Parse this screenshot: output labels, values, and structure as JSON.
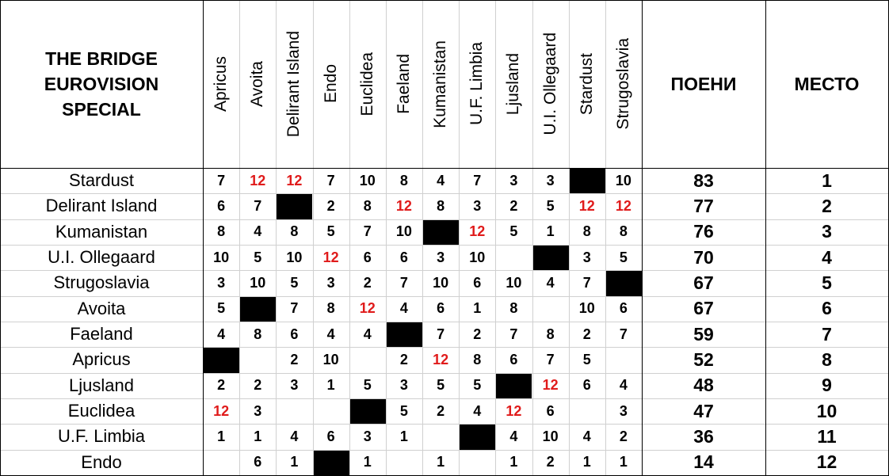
{
  "header": {
    "title": "THE BRIDGE EUROVISION SPECIAL",
    "points": "ПОЕНИ",
    "place": "МЕСТО",
    "columns": [
      "Apricus",
      "Avoita",
      "Delirant Island",
      "Endo",
      "Euclidea",
      "Faeland",
      "Kumanistan",
      "U.F. Limbia",
      "Ljusland",
      "U.I. Ollegaard",
      "Stardust",
      "Strugoslavia"
    ]
  },
  "table": {
    "rows": [
      {
        "country": "Stardust",
        "scores": [
          7,
          12,
          12,
          7,
          10,
          8,
          4,
          7,
          3,
          3,
          null,
          10
        ],
        "points": 83,
        "place": 1
      },
      {
        "country": "Delirant Island",
        "scores": [
          6,
          7,
          null,
          2,
          8,
          12,
          8,
          3,
          2,
          5,
          12,
          12
        ],
        "points": 77,
        "place": 2
      },
      {
        "country": "Kumanistan",
        "scores": [
          8,
          4,
          8,
          5,
          7,
          10,
          null,
          12,
          5,
          1,
          8,
          8
        ],
        "points": 76,
        "place": 3
      },
      {
        "country": "U.I. Ollegaard",
        "scores": [
          10,
          5,
          10,
          12,
          6,
          6,
          3,
          10,
          null,
          null,
          3,
          5
        ],
        "points": 70,
        "place": 4
      },
      {
        "country": "Strugoslavia",
        "scores": [
          3,
          10,
          5,
          3,
          2,
          7,
          10,
          6,
          10,
          4,
          7,
          null
        ],
        "points": 67,
        "place": 5
      },
      {
        "country": "Avoita",
        "scores": [
          5,
          null,
          7,
          8,
          12,
          4,
          6,
          1,
          8,
          null,
          10,
          6
        ],
        "points": 67,
        "place": 6
      },
      {
        "country": "Faeland",
        "scores": [
          4,
          8,
          6,
          4,
          4,
          null,
          7,
          2,
          7,
          8,
          2,
          7
        ],
        "points": 59,
        "place": 7
      },
      {
        "country": "Apricus",
        "scores": [
          null,
          null,
          2,
          10,
          null,
          2,
          12,
          8,
          6,
          7,
          5,
          null
        ],
        "points": 52,
        "place": 8
      },
      {
        "country": "Ljusland",
        "scores": [
          2,
          2,
          3,
          1,
          5,
          3,
          5,
          5,
          null,
          12,
          6,
          4
        ],
        "points": 48,
        "place": 9
      },
      {
        "country": "Euclidea",
        "scores": [
          12,
          3,
          null,
          null,
          null,
          5,
          2,
          4,
          12,
          6,
          null,
          3
        ],
        "points": 47,
        "place": 10
      },
      {
        "country": "U.F. Limbia",
        "scores": [
          1,
          1,
          4,
          6,
          3,
          1,
          null,
          null,
          4,
          10,
          4,
          2
        ],
        "points": 36,
        "place": 11
      },
      {
        "country": "Endo",
        "scores": [
          null,
          6,
          1,
          null,
          1,
          null,
          1,
          null,
          1,
          2,
          1,
          1
        ],
        "points": 14,
        "place": 12
      }
    ]
  }
}
